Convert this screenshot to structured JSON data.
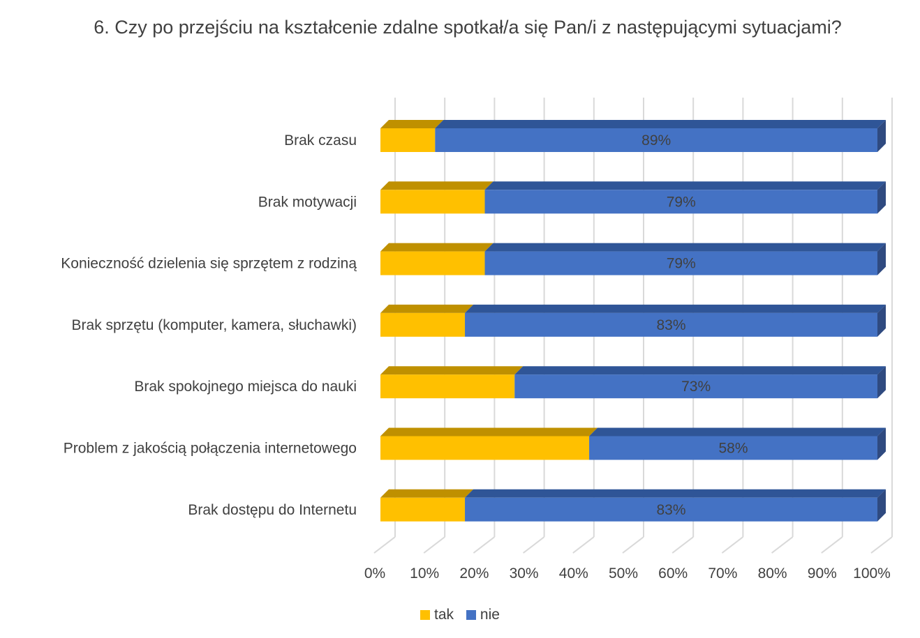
{
  "chart_data": {
    "type": "bar",
    "orientation": "horizontal",
    "stacking": "percent",
    "three_d": true,
    "title": "6. Czy po przejściu na kształcenie zdalne spotkał/a się Pan/i  z następującymi sytuacjami?",
    "categories": [
      "Brak czasu",
      "Brak motywacji",
      "Konieczność dzielenia się sprzętem z rodziną",
      "Brak sprzętu (komputer, kamera, słuchawki)",
      "Brak spokojnego miejsca do nauki",
      "Problem z jakością połączenia internetowego",
      "Brak dostępu do Internetu"
    ],
    "series": [
      {
        "name": "tak",
        "color": "#FFC000",
        "top_color": "#BF9000",
        "values": [
          11,
          21,
          21,
          17,
          27,
          42,
          17
        ]
      },
      {
        "name": "nie",
        "color": "#4472C4",
        "top_color": "#2F5597",
        "values": [
          89,
          79,
          79,
          83,
          73,
          58,
          83
        ]
      }
    ],
    "data_labels": [
      "89%",
      "79%",
      "79%",
      "83%",
      "73%",
      "58%",
      "83%"
    ],
    "x_ticks": [
      "0%",
      "10%",
      "20%",
      "30%",
      "40%",
      "50%",
      "60%",
      "70%",
      "80%",
      "90%",
      "100%"
    ],
    "xlim": [
      0,
      100
    ],
    "grid": true,
    "legend_position": "bottom"
  }
}
